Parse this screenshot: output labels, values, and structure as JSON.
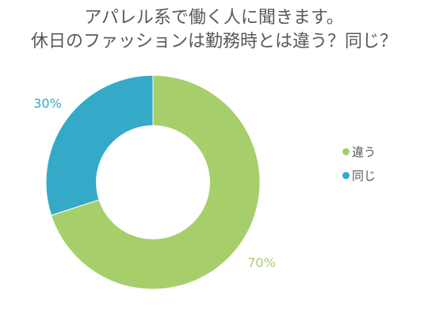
{
  "chart_data": {
    "type": "pie",
    "title_lines": [
      "アパレル系で働く人に聞きます。",
      "休日のファッションは勤務時とは違う？同じ？"
    ],
    "donut": true,
    "slices": [
      {
        "label": "違う",
        "value": 70,
        "value_label": "70%",
        "color": "#a6cf6b"
      },
      {
        "label": "同じ",
        "value": 30,
        "value_label": "30%",
        "color": "#34aac8"
      }
    ],
    "legend_position": "right"
  }
}
